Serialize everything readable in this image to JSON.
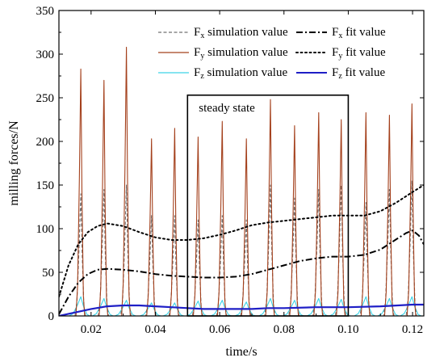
{
  "chart_data": {
    "type": "line",
    "xlabel": "time/s",
    "ylabel": "milling forces/N",
    "xlim": [
      0.01,
      0.1235
    ],
    "ylim": [
      0,
      350
    ],
    "xticks": [
      0.02,
      0.04,
      0.06,
      0.08,
      0.1,
      0.12
    ],
    "xtick_labels": [
      "0.02",
      "0.04",
      "0.06",
      "0.08",
      "0.10",
      "0.12"
    ],
    "yticks": [
      0,
      50,
      100,
      150,
      200,
      250,
      300,
      350
    ],
    "ytick_labels": [
      "0",
      "50",
      "100",
      "150",
      "200",
      "250",
      "300",
      "350"
    ],
    "grid": false,
    "legend_position": "top-right",
    "annotation": {
      "text": "steady state",
      "box_x": [
        0.05,
        0.1
      ],
      "box_y": [
        0,
        253
      ]
    },
    "peak_times": [
      0.0168,
      0.024,
      0.031,
      0.0388,
      0.046,
      0.0533,
      0.0608,
      0.0683,
      0.0758,
      0.0833,
      0.0908,
      0.0978,
      0.1055,
      0.1128,
      0.1198
    ],
    "series": [
      {
        "name_main": "F",
        "name_sub": "x",
        "name_tail": " simulation value",
        "color": "#707070",
        "style": "dashed",
        "kind": "spikes",
        "peaks": [
          140,
          145,
          150,
          115,
          115,
          110,
          115,
          110,
          150,
          135,
          145,
          150,
          130,
          145,
          155
        ],
        "width": 0.0012
      },
      {
        "name_main": "F",
        "name_sub": "y",
        "name_tail": " simulation value",
        "color": "#a4401c",
        "style": "solid",
        "kind": "spikes",
        "peaks": [
          283,
          270,
          308,
          203,
          215,
          205,
          223,
          203,
          248,
          218,
          233,
          225,
          233,
          230,
          243
        ],
        "width": 0.001
      },
      {
        "name_main": "F",
        "name_sub": "z",
        "name_tail": " simulation value",
        "color": "#3dd3e6",
        "style": "solid",
        "kind": "spikes",
        "peaks": [
          22,
          20,
          18,
          15,
          15,
          17,
          18,
          16,
          20,
          18,
          20,
          19,
          22,
          20,
          22
        ],
        "width": 0.0024
      },
      {
        "name_main": "F",
        "name_sub": "x",
        "name_tail": " fit value",
        "color": "#000000",
        "style": "dashdot",
        "kind": "line",
        "x": [
          0.01,
          0.013,
          0.016,
          0.019,
          0.022,
          0.025,
          0.03,
          0.035,
          0.04,
          0.045,
          0.05,
          0.055,
          0.06,
          0.065,
          0.07,
          0.075,
          0.08,
          0.085,
          0.09,
          0.095,
          0.1,
          0.105,
          0.11,
          0.115,
          0.118,
          0.12,
          0.122,
          0.1235
        ],
        "y": [
          2,
          22,
          38,
          48,
          53,
          54,
          53,
          51,
          48,
          46,
          45,
          44,
          44,
          45,
          48,
          53,
          58,
          63,
          66,
          68,
          68,
          70,
          76,
          88,
          95,
          98,
          92,
          82
        ]
      },
      {
        "name_main": "F",
        "name_sub": "y",
        "name_tail": " fit value",
        "color": "#000000",
        "style": "dotted",
        "kind": "line",
        "x": [
          0.01,
          0.013,
          0.016,
          0.019,
          0.022,
          0.025,
          0.03,
          0.035,
          0.04,
          0.045,
          0.05,
          0.055,
          0.06,
          0.065,
          0.07,
          0.075,
          0.08,
          0.085,
          0.09,
          0.095,
          0.1,
          0.105,
          0.11,
          0.115,
          0.12,
          0.1235
        ],
        "y": [
          22,
          58,
          82,
          96,
          103,
          106,
          103,
          96,
          90,
          87,
          87,
          89,
          93,
          98,
          104,
          107,
          109,
          111,
          113,
          115,
          115,
          115,
          120,
          130,
          142,
          150
        ]
      },
      {
        "name_main": "F",
        "name_sub": "z",
        "name_tail": " fit value",
        "color": "#1f1fc6",
        "style": "solid",
        "kind": "line",
        "x": [
          0.01,
          0.015,
          0.02,
          0.025,
          0.03,
          0.035,
          0.04,
          0.045,
          0.05,
          0.055,
          0.06,
          0.065,
          0.07,
          0.075,
          0.08,
          0.09,
          0.1,
          0.11,
          0.12,
          0.1235
        ],
        "y": [
          0,
          4,
          8,
          11,
          12,
          12,
          11,
          10,
          9,
          8,
          8,
          8,
          8,
          9,
          9,
          10,
          10,
          11,
          13,
          13
        ]
      }
    ]
  }
}
